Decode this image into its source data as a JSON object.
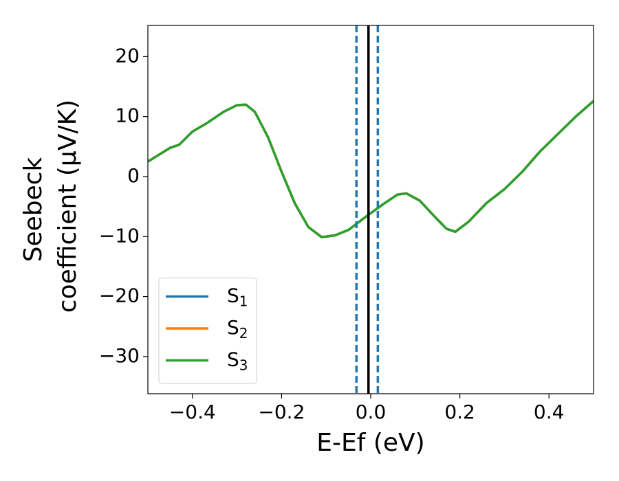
{
  "chart_data": {
    "type": "line",
    "xlabel": "E-Ef (eV)",
    "ylabel": [
      "Seebeck",
      "coefficient  (μV/K)"
    ],
    "x": [
      -0.5,
      -0.45,
      -0.43,
      -0.4,
      -0.37,
      -0.33,
      -0.3,
      -0.28,
      -0.26,
      -0.23,
      -0.2,
      -0.17,
      -0.14,
      -0.11,
      -0.08,
      -0.05,
      -0.02,
      0.0,
      0.03,
      0.06,
      0.08,
      0.11,
      0.14,
      0.17,
      0.19,
      0.22,
      0.26,
      0.3,
      0.34,
      0.38,
      0.42,
      0.46,
      0.5
    ],
    "series": [
      {
        "name": "S1",
        "color": "#1f77b4",
        "values": [
          2.5,
          4.8,
          5.3,
          7.5,
          8.8,
          10.8,
          11.9,
          12.0,
          10.8,
          6.5,
          0.8,
          -4.5,
          -8.4,
          -10.1,
          -9.8,
          -8.9,
          -7.2,
          -6.1,
          -4.5,
          -3.0,
          -2.8,
          -4.0,
          -6.4,
          -8.7,
          -9.2,
          -7.5,
          -4.4,
          -2.1,
          0.8,
          4.2,
          7.1,
          10.0,
          12.6
        ]
      },
      {
        "name": "S2",
        "color": "#ff7f0e",
        "values": [
          2.5,
          4.8,
          5.3,
          7.5,
          8.8,
          10.8,
          11.9,
          12.0,
          10.8,
          6.5,
          0.8,
          -4.5,
          -8.4,
          -10.1,
          -9.8,
          -8.9,
          -7.2,
          -6.1,
          -4.5,
          -3.0,
          -2.8,
          -4.0,
          -6.4,
          -8.7,
          -9.2,
          -7.5,
          -4.4,
          -2.1,
          0.8,
          4.2,
          7.1,
          10.0,
          12.6
        ]
      },
      {
        "name": "S3",
        "color": "#2ca02c",
        "values": [
          2.5,
          4.8,
          5.3,
          7.5,
          8.8,
          10.8,
          11.9,
          12.0,
          10.8,
          6.5,
          0.8,
          -4.5,
          -8.4,
          -10.1,
          -9.8,
          -8.9,
          -7.2,
          -6.1,
          -4.5,
          -3.0,
          -2.8,
          -4.0,
          -6.4,
          -8.7,
          -9.2,
          -7.5,
          -4.4,
          -2.1,
          0.8,
          4.2,
          7.1,
          10.0,
          12.6
        ]
      }
    ],
    "vlines": [
      {
        "x": -0.032,
        "color": "#1f77b4",
        "style": "dashed"
      },
      {
        "x": 0.016,
        "color": "#1f77b4",
        "style": "dashed"
      },
      {
        "x": -0.005,
        "color": "#000000",
        "style": "solid"
      }
    ],
    "xlim": [
      -0.5,
      0.5
    ],
    "ylim": [
      -36.2,
      25.2
    ],
    "xticks": [
      {
        "value": -0.4,
        "label": "−0.4"
      },
      {
        "value": -0.2,
        "label": "−0.2"
      },
      {
        "value": 0.0,
        "label": "0.0"
      },
      0.2,
      0.4
    ],
    "yticks": [
      {
        "value": -30,
        "label": "−30"
      },
      {
        "value": -20,
        "label": "−20"
      },
      {
        "value": -10,
        "label": "−10"
      },
      0,
      10,
      20
    ],
    "grid": false,
    "legend": "lower left"
  }
}
